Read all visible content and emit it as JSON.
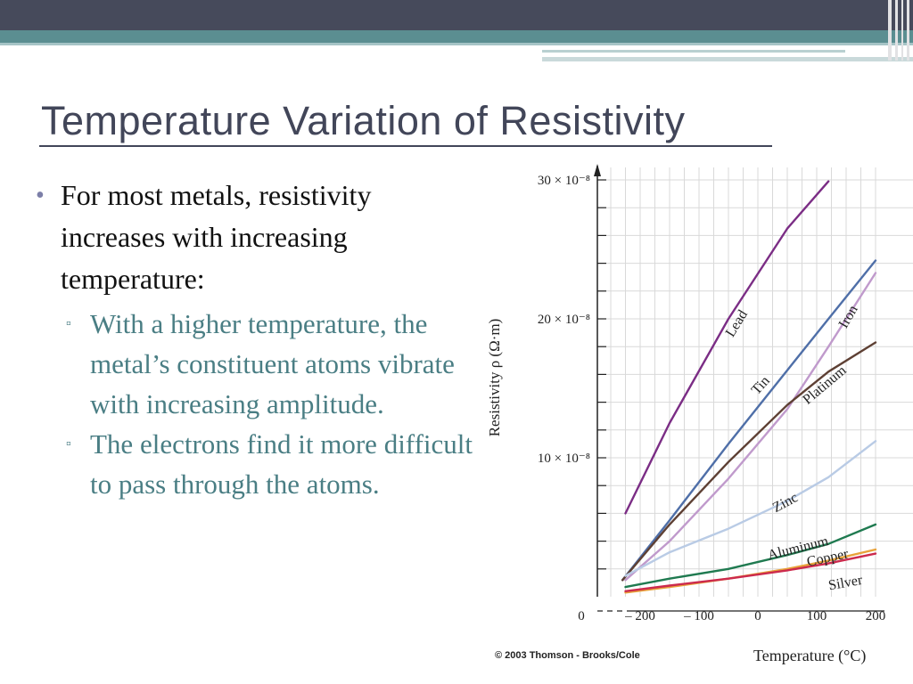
{
  "slide": {
    "title": "Temperature Variation of Resistivity",
    "bullet": "For most metals, resistivity increases with increasing temperature:",
    "sub_bullets": [
      "With a higher temperature, the metal’s constituent atoms vibrate with increasing amplitude.",
      "The electrons find it more difficult to pass through the atoms."
    ],
    "copyright": "© 2003 Thomson - Brooks/Cole"
  },
  "colors": {
    "header_dark": "#464a5b",
    "header_teal": "#5b8e91",
    "title_text": "#424659",
    "sub_bullet_text": "#4a7e84",
    "bullet_marker": "#7c7fa8"
  },
  "chart_data": {
    "type": "line",
    "xlabel": "Temperature (°C)",
    "ylabel": "Resistivity ρ (Ω·m)",
    "xticks": [
      "0",
      "– 200",
      "– 100",
      "0",
      "100",
      "200"
    ],
    "yticks": [
      "10 × 10⁻⁸",
      "20 × 10⁻⁸",
      "30 × 10⁻⁸"
    ],
    "xlim": [
      -300,
      210
    ],
    "ylim": [
      0,
      32
    ],
    "y_unit": "× 10⁻⁸ Ω·m",
    "grid": true,
    "series": [
      {
        "name": "Lead",
        "color": "#7b2d85",
        "x": [
          -225,
          -150,
          -50,
          50,
          120
        ],
        "y": [
          6.0,
          12.5,
          20.0,
          26.5,
          29.9
        ]
      },
      {
        "name": "Tin",
        "color": "#4f6fa8",
        "x": [
          -230,
          -150,
          -50,
          50,
          120,
          200
        ],
        "y": [
          1.2,
          5.5,
          11.0,
          16.3,
          20.0,
          24.2
        ]
      },
      {
        "name": "Iron",
        "color": "#c09acc",
        "x": [
          -225,
          -150,
          -50,
          50,
          120,
          200
        ],
        "y": [
          1.2,
          4.0,
          8.5,
          13.5,
          18.0,
          23.3
        ]
      },
      {
        "name": "Platinum",
        "color": "#5e4034",
        "x": [
          -230,
          -150,
          -50,
          50,
          120,
          200
        ],
        "y": [
          1.2,
          5.2,
          9.7,
          13.8,
          16.2,
          18.3
        ]
      },
      {
        "name": "Zinc",
        "color": "#b9cbe5",
        "x": [
          -225,
          -150,
          -50,
          50,
          120,
          200
        ],
        "y": [
          1.5,
          3.2,
          4.9,
          6.9,
          8.6,
          11.2
        ]
      },
      {
        "name": "Aluminum",
        "color": "#1f7a50",
        "x": [
          -225,
          -150,
          -50,
          50,
          120,
          200
        ],
        "y": [
          0.7,
          1.3,
          2.0,
          3.0,
          3.8,
          5.2
        ]
      },
      {
        "name": "Copper",
        "color": "#e8a23a",
        "x": [
          -225,
          -150,
          -50,
          50,
          120,
          200
        ],
        "y": [
          0.3,
          0.7,
          1.3,
          2.0,
          2.6,
          3.4
        ]
      },
      {
        "name": "Silver",
        "color": "#cc2a4d",
        "x": [
          -225,
          -150,
          -50,
          50,
          120,
          200
        ],
        "y": [
          0.4,
          0.8,
          1.3,
          1.9,
          2.4,
          3.1
        ]
      }
    ]
  }
}
